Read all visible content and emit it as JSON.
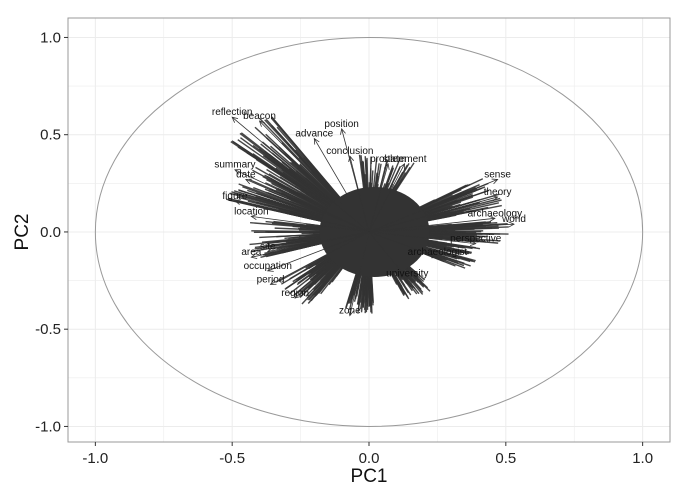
{
  "chart_data": {
    "type": "biplot",
    "title": "",
    "xlabel": "PC1",
    "ylabel": "PC2",
    "xlim": [
      -1.1,
      1.1
    ],
    "ylim": [
      -1.08,
      1.1
    ],
    "xticks": [
      -1.0,
      -0.5,
      0.0,
      0.5,
      1.0
    ],
    "yticks": [
      -1.0,
      -0.5,
      0.0,
      0.5,
      1.0
    ],
    "xtick_labels": [
      "-1.0",
      "-0.5",
      "0.0",
      "0.5",
      "1.0"
    ],
    "ytick_labels": [
      "-1.0",
      "-0.5",
      "0.0",
      "0.5",
      "1.0"
    ],
    "grid": true,
    "circle_radius": 1.0,
    "colors": {
      "panel_border": "#999999",
      "grid": "#ececec",
      "arrow": "#333333",
      "circle": "#999999"
    },
    "labeled_vectors": [
      {
        "label": "reflection",
        "x": -0.5,
        "y": 0.59
      },
      {
        "label": "beacon",
        "x": -0.4,
        "y": 0.57
      },
      {
        "label": "position",
        "x": -0.1,
        "y": 0.53
      },
      {
        "label": "advance",
        "x": -0.2,
        "y": 0.48
      },
      {
        "label": "conclusion",
        "x": -0.07,
        "y": 0.39
      },
      {
        "label": "problem",
        "x": 0.07,
        "y": 0.35
      },
      {
        "label": "statement",
        "x": 0.13,
        "y": 0.35
      },
      {
        "label": "sense",
        "x": 0.47,
        "y": 0.27
      },
      {
        "label": "date",
        "x": -0.45,
        "y": 0.27
      },
      {
        "label": "summary",
        "x": -0.49,
        "y": 0.32
      },
      {
        "label": "theory",
        "x": 0.47,
        "y": 0.18
      },
      {
        "label": "figure",
        "x": -0.49,
        "y": 0.16
      },
      {
        "label": "location",
        "x": -0.43,
        "y": 0.08
      },
      {
        "label": "archaeology",
        "x": 0.46,
        "y": 0.07
      },
      {
        "label": "world",
        "x": 0.53,
        "y": 0.04
      },
      {
        "label": "perspective",
        "x": 0.39,
        "y": -0.06
      },
      {
        "label": "site",
        "x": -0.37,
        "y": -0.1
      },
      {
        "label": "area",
        "x": -0.43,
        "y": -0.13
      },
      {
        "label": "archaeologist",
        "x": 0.25,
        "y": -0.13
      },
      {
        "label": "occupation",
        "x": -0.37,
        "y": -0.2
      },
      {
        "label": "university",
        "x": 0.14,
        "y": -0.24
      },
      {
        "label": "period",
        "x": -0.36,
        "y": -0.27
      },
      {
        "label": "region",
        "x": -0.27,
        "y": -0.34
      },
      {
        "label": "zone",
        "x": -0.07,
        "y": -0.43
      }
    ]
  }
}
